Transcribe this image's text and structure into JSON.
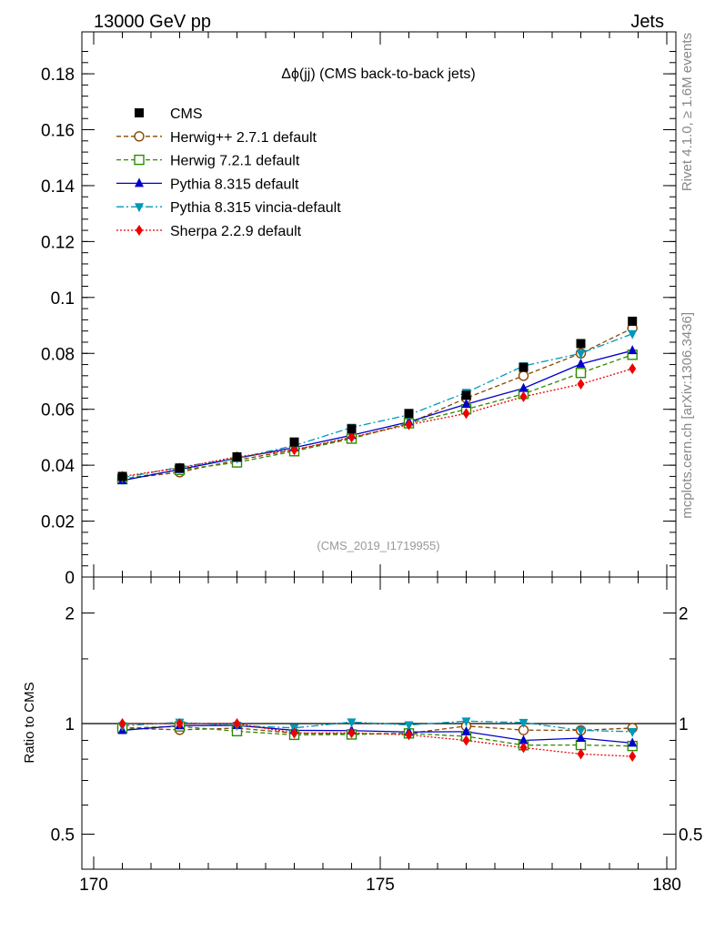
{
  "chart_data": {
    "type": "line",
    "header_left": "13000 GeV pp",
    "header_right": "Jets",
    "title": "Δϕ(jj) (CMS back-to-back jets)",
    "watermark": "(CMS_2019_I1719955)",
    "side_label_top": "Rivet 4.1.0, ≥ 1.6M events",
    "side_label_bottom": "mcplots.cern.ch [arXiv:1306.3436]",
    "ratio_ylabel": "Ratio to CMS",
    "xlim": [
      170,
      180
    ],
    "x_ticks": [
      "170",
      "175",
      "180"
    ],
    "ylim": [
      0,
      0.195
    ],
    "y_ticks": [
      "0",
      "0.02",
      "0.04",
      "0.06",
      "0.08",
      "0.1",
      "0.12",
      "0.14",
      "0.16",
      "0.18"
    ],
    "ratio_ylim": [
      0.5,
      2.2
    ],
    "ratio_ticks": [
      "0.5",
      "1",
      "2"
    ],
    "x": [
      170.5,
      171.5,
      172.5,
      173.5,
      174.5,
      175.5,
      176.5,
      177.5,
      178.5,
      179.4
    ],
    "data": {
      "name": "CMS",
      "color": "#000000",
      "values": [
        0.036,
        0.039,
        0.043,
        0.0483,
        0.053,
        0.0585,
        0.065,
        0.075,
        0.0835,
        0.0915
      ]
    },
    "series": [
      {
        "name": "Herwig++ 2.7.1 default",
        "color": "#8b4500",
        "marker": "circle-open",
        "dash": "5,3",
        "values": [
          0.035,
          0.0375,
          0.0418,
          0.0455,
          0.0497,
          0.055,
          0.064,
          0.072,
          0.08,
          0.089
        ]
      },
      {
        "name": "Herwig 7.2.1 default",
        "color": "#2e8b00",
        "marker": "square-open",
        "dash": "5,3",
        "values": [
          0.035,
          0.0383,
          0.041,
          0.045,
          0.0495,
          0.055,
          0.06,
          0.0655,
          0.073,
          0.0795
        ]
      },
      {
        "name": "Pythia 8.315 default",
        "color": "#0000cc",
        "marker": "triangle-up",
        "dash": "",
        "values": [
          0.0345,
          0.0385,
          0.0425,
          0.0463,
          0.0507,
          0.0555,
          0.0618,
          0.0675,
          0.0762,
          0.081
        ]
      },
      {
        "name": "Pythia 8.315 vincia-default",
        "color": "#0098b8",
        "marker": "triangle-down",
        "dash": "8,3,2,3",
        "values": [
          0.0355,
          0.0393,
          0.0425,
          0.047,
          0.0535,
          0.058,
          0.066,
          0.0755,
          0.08,
          0.087
        ]
      },
      {
        "name": "Sherpa 2.2.9 default",
        "color": "#ee0000",
        "marker": "diamond",
        "dash": "2,2",
        "values": [
          0.036,
          0.039,
          0.043,
          0.0455,
          0.05,
          0.0545,
          0.0585,
          0.0645,
          0.069,
          0.0745
        ]
      }
    ]
  }
}
